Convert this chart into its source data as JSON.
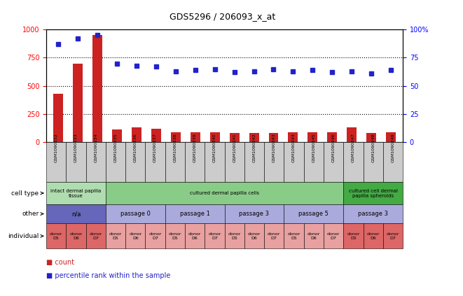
{
  "title": "GDS5296 / 206093_x_at",
  "samples": [
    "GSM1090232",
    "GSM1090233",
    "GSM1090234",
    "GSM1090235",
    "GSM1090236",
    "GSM1090237",
    "GSM1090238",
    "GSM1090239",
    "GSM1090240",
    "GSM1090241",
    "GSM1090242",
    "GSM1090243",
    "GSM1090244",
    "GSM1090245",
    "GSM1090246",
    "GSM1090247",
    "GSM1090248",
    "GSM1090249"
  ],
  "counts": [
    430,
    700,
    950,
    110,
    130,
    120,
    90,
    85,
    90,
    80,
    80,
    80,
    85,
    90,
    85,
    130,
    80,
    90
  ],
  "percentiles": [
    87,
    92,
    95,
    70,
    68,
    67,
    63,
    64,
    65,
    62,
    63,
    65,
    63,
    64,
    62,
    63,
    61,
    64
  ],
  "cell_types": [
    {
      "label": "intact dermal papilla\ntissue",
      "start": 0,
      "end": 3,
      "color": "#b0ddb0"
    },
    {
      "label": "cultured dermal papilla cells",
      "start": 3,
      "end": 15,
      "color": "#88cc88"
    },
    {
      "label": "cultured cell dermal\npapilla spheroids",
      "start": 15,
      "end": 18,
      "color": "#44aa44"
    }
  ],
  "others": [
    {
      "label": "n/a",
      "start": 0,
      "end": 3,
      "color": "#6666bb"
    },
    {
      "label": "passage 0",
      "start": 3,
      "end": 6,
      "color": "#aaaadd"
    },
    {
      "label": "passage 1",
      "start": 6,
      "end": 9,
      "color": "#aaaadd"
    },
    {
      "label": "passage 3",
      "start": 9,
      "end": 12,
      "color": "#aaaadd"
    },
    {
      "label": "passage 5",
      "start": 12,
      "end": 15,
      "color": "#aaaadd"
    },
    {
      "label": "passage 3",
      "start": 15,
      "end": 18,
      "color": "#aaaadd"
    }
  ],
  "individuals": [
    {
      "label": "donor\nD5",
      "start": 0,
      "end": 1,
      "color": "#dd6666"
    },
    {
      "label": "donor\nD6",
      "start": 1,
      "end": 2,
      "color": "#dd6666"
    },
    {
      "label": "donor\nD7",
      "start": 2,
      "end": 3,
      "color": "#dd6666"
    },
    {
      "label": "donor\nD5",
      "start": 3,
      "end": 4,
      "color": "#e8a0a0"
    },
    {
      "label": "donor\nD6",
      "start": 4,
      "end": 5,
      "color": "#e8a0a0"
    },
    {
      "label": "donor\nD7",
      "start": 5,
      "end": 6,
      "color": "#e8a0a0"
    },
    {
      "label": "donor\nD5",
      "start": 6,
      "end": 7,
      "color": "#e8a0a0"
    },
    {
      "label": "donor\nD6",
      "start": 7,
      "end": 8,
      "color": "#e8a0a0"
    },
    {
      "label": "donor\nD7",
      "start": 8,
      "end": 9,
      "color": "#e8a0a0"
    },
    {
      "label": "donor\nD5",
      "start": 9,
      "end": 10,
      "color": "#e8a0a0"
    },
    {
      "label": "donor\nD6",
      "start": 10,
      "end": 11,
      "color": "#e8a0a0"
    },
    {
      "label": "donor\nD7",
      "start": 11,
      "end": 12,
      "color": "#e8a0a0"
    },
    {
      "label": "donor\nD5",
      "start": 12,
      "end": 13,
      "color": "#e8a0a0"
    },
    {
      "label": "donor\nD6",
      "start": 13,
      "end": 14,
      "color": "#e8a0a0"
    },
    {
      "label": "donor\nD7",
      "start": 14,
      "end": 15,
      "color": "#e8a0a0"
    },
    {
      "label": "donor\nD5",
      "start": 15,
      "end": 16,
      "color": "#dd6666"
    },
    {
      "label": "donor\nD6",
      "start": 16,
      "end": 17,
      "color": "#dd6666"
    },
    {
      "label": "donor\nD7",
      "start": 17,
      "end": 18,
      "color": "#dd6666"
    }
  ],
  "bar_color": "#cc2222",
  "dot_color": "#2222cc",
  "ylim_left": [
    0,
    1000
  ],
  "ylim_right": [
    0,
    100
  ],
  "yticks_left": [
    0,
    250,
    500,
    750,
    1000
  ],
  "yticks_right": [
    0,
    25,
    50,
    75,
    100
  ],
  "background_color": "#ffffff"
}
